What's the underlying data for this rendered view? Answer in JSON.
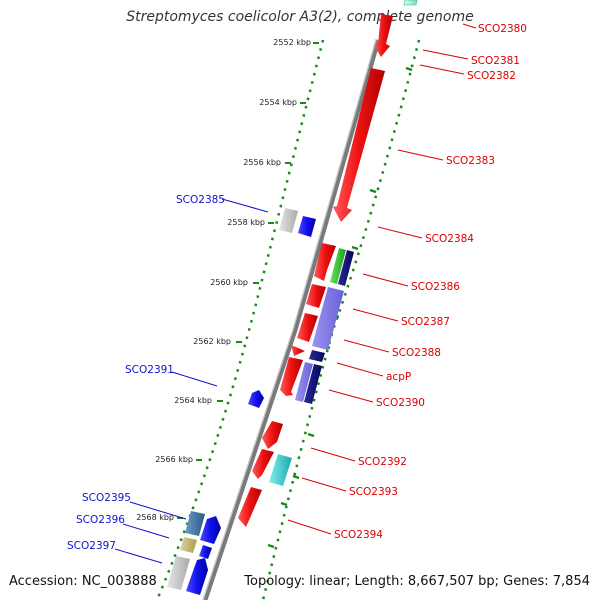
{
  "title": "Streptomyces coelicolor A3(2), complete genome",
  "footer": {
    "accession": "Accession: NC_003888",
    "topology": "Topology: linear; Length: 8,667,507 bp; Genes: 7,854"
  },
  "colors": {
    "forward_label": "#dd0000",
    "reverse_label": "#1111cc",
    "strand_red": "#ee1111",
    "strand_blue": "#1111ee",
    "axis": "#7a7a7a",
    "dots": "#1a8a1a"
  },
  "kbp_ticks": [
    "2552 kbp",
    "2554 kbp",
    "2556 kbp",
    "2558 kbp",
    "2560 kbp",
    "2562 kbp",
    "2564 kbp",
    "2566 kbp",
    "2568 kbp"
  ],
  "genes_right": [
    "SCO2380",
    "SCO2381",
    "SCO2382",
    "SCO2383",
    "SCO2384",
    "SCO2386",
    "SCO2387",
    "SCO2388",
    "acpP",
    "SCO2390",
    "SCO2392",
    "SCO2393",
    "SCO2394"
  ],
  "genes_left": [
    "SCO2385",
    "SCO2391",
    "SCO2395",
    "SCO2396",
    "SCO2397"
  ]
}
